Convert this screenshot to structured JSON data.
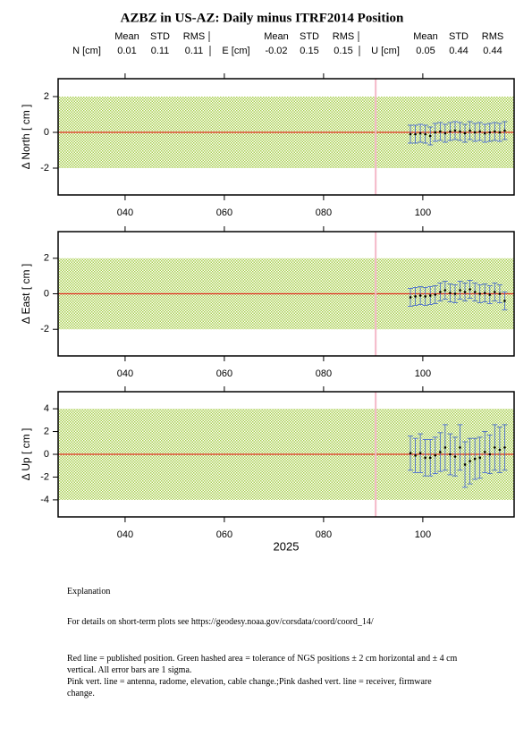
{
  "title": "AZBZ in US-AZ: Daily minus ITRF2014 Position",
  "stat_headers": [
    "Mean",
    "STD",
    "RMS"
  ],
  "stats": [
    {
      "label": "N [cm]",
      "mean": 0.01,
      "std": 0.11,
      "rms": 0.11
    },
    {
      "label": "E [cm]",
      "mean": -0.02,
      "std": 0.15,
      "rms": 0.15
    },
    {
      "label": "U [cm]",
      "mean": 0.05,
      "std": 0.44,
      "rms": 0.44
    }
  ],
  "chart_data": [
    {
      "type": "scatter",
      "ylabel": "Δ North  [ cm ]",
      "x": [
        97.5,
        98.5,
        99.5,
        100.5,
        101.5,
        102.5,
        103.5,
        104.5,
        105.5,
        106.5,
        107.5,
        108.5,
        109.5,
        110.5,
        111.5,
        112.5,
        113.5,
        114.5,
        115.5,
        116.5
      ],
      "values": [
        -0.1,
        -0.1,
        -0.05,
        -0.1,
        -0.2,
        0.0,
        0.05,
        -0.05,
        0.05,
        0.1,
        0.05,
        -0.05,
        0.1,
        0.0,
        0.05,
        -0.05,
        0.0,
        0.05,
        0.0,
        0.1
      ],
      "errors": [
        0.5,
        0.5,
        0.5,
        0.5,
        0.5,
        0.5,
        0.5,
        0.5,
        0.5,
        0.5,
        0.5,
        0.5,
        0.5,
        0.5,
        0.5,
        0.5,
        0.5,
        0.5,
        0.5,
        0.5
      ],
      "color": "#000000",
      "error_color": "#3a5fd0",
      "band": [
        -2,
        2
      ],
      "band_color": "#a9cf4f",
      "reference": 0,
      "reference_color": "#e03020",
      "event_x": 90.5,
      "event_color": "#f4b8c8",
      "xlim": [
        26.5,
        118.4
      ],
      "xticks": [
        {
          "value": 40,
          "label": "040"
        },
        {
          "value": 60,
          "label": "060"
        },
        {
          "value": 80,
          "label": "080"
        },
        {
          "value": 100,
          "label": "100"
        }
      ],
      "ylim": [
        -3.5,
        3
      ],
      "yticks": [
        -2,
        0,
        2
      ]
    },
    {
      "type": "scatter",
      "ylabel": "Δ East  [ cm ]",
      "x": [
        97.5,
        98.5,
        99.5,
        100.5,
        101.5,
        102.5,
        103.5,
        104.5,
        105.5,
        106.5,
        107.5,
        108.5,
        109.5,
        110.5,
        111.5,
        112.5,
        113.5,
        114.5,
        115.5,
        116.5
      ],
      "values": [
        -0.2,
        -0.15,
        -0.1,
        -0.15,
        -0.1,
        -0.05,
        0.1,
        0.2,
        0.05,
        0.0,
        0.2,
        0.1,
        0.25,
        0.1,
        0.0,
        0.05,
        -0.05,
        0.1,
        0.0,
        -0.4
      ],
      "errors": [
        0.5,
        0.5,
        0.5,
        0.5,
        0.5,
        0.5,
        0.5,
        0.5,
        0.5,
        0.5,
        0.5,
        0.5,
        0.5,
        0.5,
        0.5,
        0.5,
        0.5,
        0.5,
        0.5,
        0.5
      ],
      "color": "#000000",
      "error_color": "#3a5fd0",
      "band": [
        -2,
        2
      ],
      "band_color": "#a9cf4f",
      "reference": 0,
      "reference_color": "#e03020",
      "event_x": 90.5,
      "event_color": "#f4b8c8",
      "xlim": [
        26.5,
        118.4
      ],
      "xticks": [
        {
          "value": 40,
          "label": "040"
        },
        {
          "value": 60,
          "label": "060"
        },
        {
          "value": 80,
          "label": "080"
        },
        {
          "value": 100,
          "label": "100"
        }
      ],
      "ylim": [
        -3.5,
        3.5
      ],
      "yticks": [
        -2,
        0,
        2
      ]
    },
    {
      "type": "scatter",
      "ylabel": "Δ Up  [ cm ]",
      "xlabel": "2025",
      "x": [
        97.5,
        98.5,
        99.5,
        100.5,
        101.5,
        102.5,
        103.5,
        104.5,
        105.5,
        106.5,
        107.5,
        108.5,
        109.5,
        110.5,
        111.5,
        112.5,
        113.5,
        114.5,
        115.5,
        116.5
      ],
      "values": [
        0.1,
        -0.1,
        0.1,
        -0.3,
        -0.3,
        -0.1,
        0.2,
        0.6,
        0.0,
        -0.2,
        0.6,
        -0.9,
        -0.6,
        -0.4,
        -0.3,
        0.2,
        0.0,
        0.6,
        0.4,
        0.6
      ],
      "errors": [
        1.5,
        1.5,
        1.7,
        1.6,
        1.6,
        1.6,
        1.7,
        2.0,
        1.8,
        1.7,
        2.0,
        2.0,
        2.0,
        1.8,
        1.8,
        1.8,
        1.7,
        2.0,
        2.0,
        2.0
      ],
      "color": "#000000",
      "error_color": "#3a5fd0",
      "band": [
        -4,
        4
      ],
      "band_color": "#a9cf4f",
      "reference": 0,
      "reference_color": "#e03020",
      "event_x": 90.5,
      "event_color": "#f4b8c8",
      "xlim": [
        26.5,
        118.4
      ],
      "xticks": [
        {
          "value": 40,
          "label": "040"
        },
        {
          "value": 60,
          "label": "060"
        },
        {
          "value": 80,
          "label": "080"
        },
        {
          "value": 100,
          "label": "100"
        }
      ],
      "ylim": [
        -5.5,
        5.5
      ],
      "yticks": [
        -4,
        -2,
        0,
        2,
        4
      ]
    }
  ],
  "explanation": {
    "heading": "Explanation",
    "details": "For details on short-term plots see https://geodesy.noaa.gov/corsdata/coord/coord_14/",
    "lines": [
      "Red line = published position.  Green hashed area = tolerance of NGS positions ± 2 cm horizontal and ± 4 cm vertical.  All error bars are 1 sigma.",
      "Pink vert. line = antenna, radome, elevation, cable change.;Pink dashed vert. line = receiver, firmware change."
    ]
  }
}
